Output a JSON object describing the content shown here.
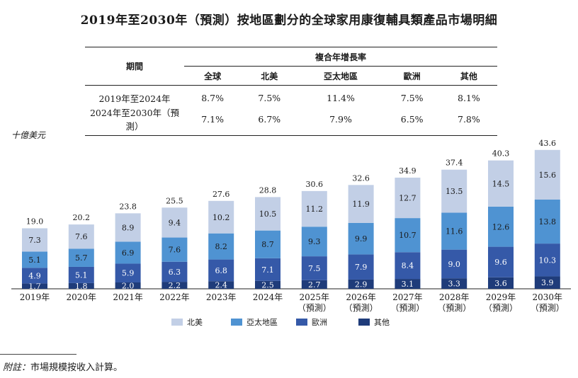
{
  "title": "2019年至2030年（預測）按地區劃分的全球家用康復輔具類產品市場明細",
  "cagr_table": {
    "period_header": "期間",
    "group_header": "複合年增長率",
    "columns": [
      "全球",
      "北美",
      "亞太地區",
      "歐洲",
      "其他"
    ],
    "rows": [
      {
        "period": "2019年至2024年",
        "values": [
          "8.7%",
          "7.5%",
          "11.4%",
          "7.5%",
          "8.1%"
        ]
      },
      {
        "period": "2024年至2030年（預測）",
        "values": [
          "7.1%",
          "6.7%",
          "7.9%",
          "6.5%",
          "7.8%"
        ]
      }
    ]
  },
  "unit_label": "十億美元",
  "chart_data": {
    "type": "bar",
    "stacked": true,
    "categories": [
      [
        "2019年"
      ],
      [
        "2020年"
      ],
      [
        "2021年"
      ],
      [
        "2022年"
      ],
      [
        "2023年"
      ],
      [
        "2024年"
      ],
      [
        "2025年",
        "（預測）"
      ],
      [
        "2026年",
        "（預測）"
      ],
      [
        "2027年",
        "（預測）"
      ],
      [
        "2028年",
        "（預測）"
      ],
      [
        "2029年",
        "（預測）"
      ],
      [
        "2030年",
        "（預測）"
      ]
    ],
    "totals": [
      19.0,
      20.2,
      23.8,
      25.5,
      27.6,
      28.8,
      30.6,
      32.6,
      34.9,
      37.4,
      40.3,
      43.6
    ],
    "series": [
      {
        "name": "其他",
        "color": "#1f3c7a",
        "values": [
          1.7,
          1.8,
          2.0,
          2.2,
          2.4,
          2.5,
          2.7,
          2.9,
          3.1,
          3.3,
          3.6,
          3.9
        ]
      },
      {
        "name": "歐洲",
        "color": "#3559a8",
        "values": [
          4.9,
          5.1,
          5.9,
          6.3,
          6.8,
          7.1,
          7.5,
          7.9,
          8.4,
          9.0,
          9.6,
          10.3
        ]
      },
      {
        "name": "亞太地區",
        "color": "#4f93d2",
        "values": [
          5.1,
          5.7,
          6.9,
          7.6,
          8.2,
          8.7,
          9.3,
          9.9,
          10.7,
          11.6,
          12.6,
          13.8
        ]
      },
      {
        "name": "北美",
        "color": "#c2cfe6",
        "values": [
          7.3,
          7.6,
          8.9,
          9.4,
          10.2,
          10.5,
          11.2,
          11.9,
          12.7,
          13.5,
          14.5,
          15.6
        ]
      }
    ],
    "legend_order": [
      "北美",
      "亞太地區",
      "歐洲",
      "其他"
    ],
    "legend_position": "bottom",
    "grid": false,
    "ylim": [
      0,
      45
    ]
  },
  "footnote": {
    "label": "附註：",
    "text": "市場規模按收入計算。"
  }
}
